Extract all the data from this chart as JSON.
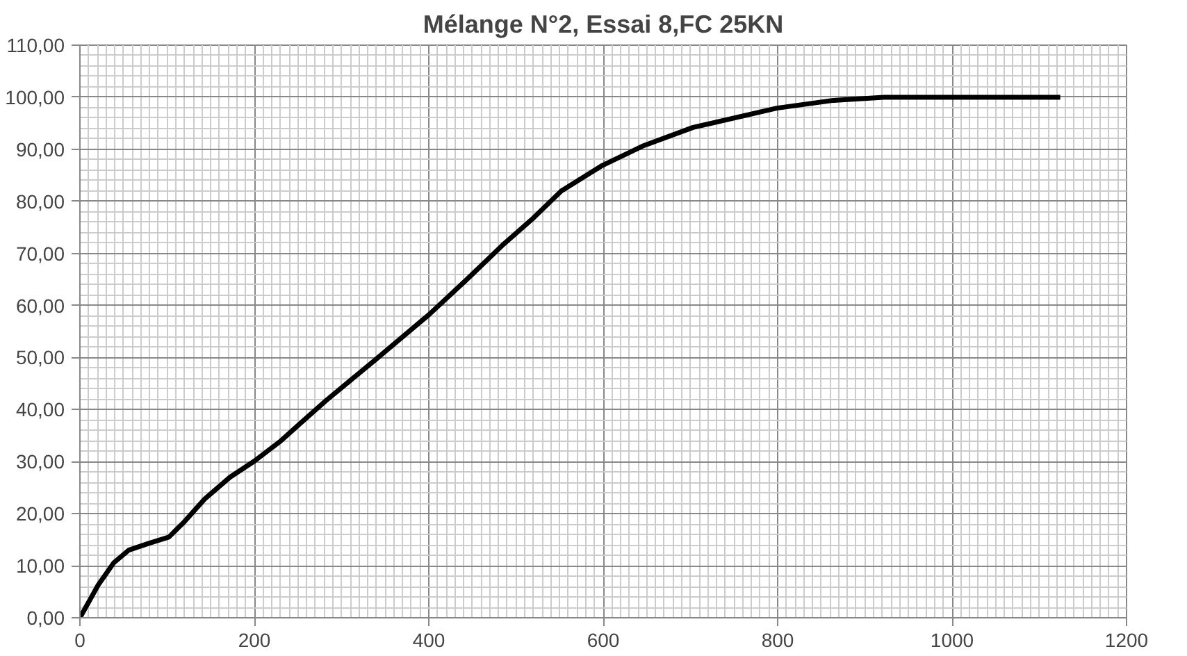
{
  "chart_data": {
    "type": "line",
    "title": "Mélange N°2, Essai 8,FC 25KN",
    "x": [
      0,
      21,
      39,
      56,
      79,
      102,
      120,
      143,
      172,
      200,
      229,
      253,
      282,
      339,
      400,
      443,
      484,
      518,
      552,
      599,
      645,
      703,
      799,
      864,
      922,
      1000,
      1124
    ],
    "series": [
      {
        "color": "#000000",
        "values": [
          0,
          6.3,
          10.6,
          13,
          14.3,
          15.5,
          18.5,
          22.8,
          27,
          30.1,
          33.8,
          37.4,
          41.7,
          49.6,
          58.2,
          64.9,
          71.5,
          76.5,
          82,
          86.9,
          90.6,
          94.2,
          97.9,
          99.4,
          100,
          100,
          100
        ]
      }
    ],
    "xlim": [
      0,
      1200
    ],
    "xticks": [
      0,
      200,
      400,
      600,
      800,
      1000,
      1200
    ],
    "ylim": [
      0,
      110
    ],
    "yticks": [
      {
        "value": 0,
        "label": "0,00"
      },
      {
        "value": 10,
        "label": "10,00"
      },
      {
        "value": 20,
        "label": "20,00"
      },
      {
        "value": 30,
        "label": "30,00"
      },
      {
        "value": 40,
        "label": "40,00"
      },
      {
        "value": 50,
        "label": "50,00"
      },
      {
        "value": 60,
        "label": "60,00"
      },
      {
        "value": 70,
        "label": "70,00"
      },
      {
        "value": 80,
        "label": "80,00"
      },
      {
        "value": 90,
        "label": "90,00"
      },
      {
        "value": 100,
        "label": "100,00"
      },
      {
        "value": 110,
        "label": "110,00"
      }
    ],
    "grid": true,
    "marker": "none",
    "line_style": "solid"
  }
}
